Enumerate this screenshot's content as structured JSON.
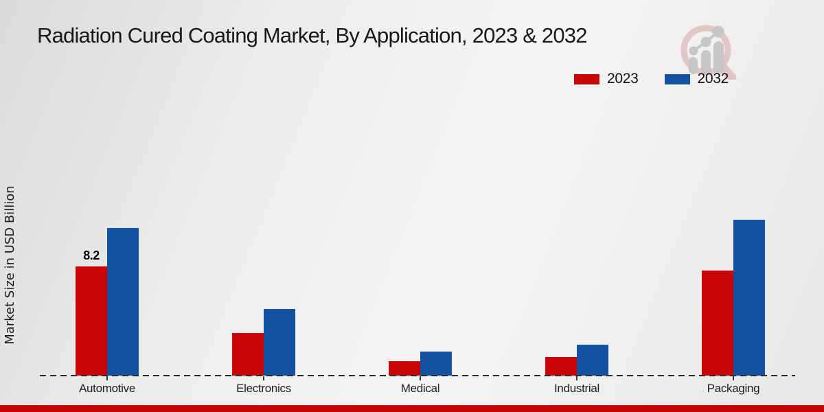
{
  "header": {
    "title": "Radiation Cured Coating Market, By Application, 2023 & 2032"
  },
  "icons": {
    "watermark": "magnifying-glass-growth-chart-logo"
  },
  "colors": {
    "series_2023": "#c90404",
    "series_2032": "#12529e",
    "footer_band": "#c40404",
    "axis": "#2b2b2b",
    "background": "#ededec"
  },
  "chart_data": {
    "type": "bar",
    "title": "Radiation Cured Coating Market, By Application, 2023 & 2032",
    "categories": [
      "Automotive",
      "Electronics",
      "Medical",
      "Industrial",
      "Packaging"
    ],
    "series": [
      {
        "name": "2023",
        "color": "#c90404",
        "values": [
          8.2,
          3.2,
          1.1,
          1.4,
          7.9
        ]
      },
      {
        "name": "2032",
        "color": "#12529e",
        "values": [
          11.1,
          5.0,
          1.8,
          2.3,
          11.7
        ]
      }
    ],
    "xlabel": "",
    "ylabel": "Market Size in USD Billion",
    "ylim": [
      0,
      12.5
    ],
    "grid": false,
    "legend_position": "top-right",
    "x_axis_style": "dashed-baseline-only",
    "data_labels": [
      {
        "category_index": 0,
        "series_index": 0,
        "text": "8.2"
      }
    ]
  }
}
